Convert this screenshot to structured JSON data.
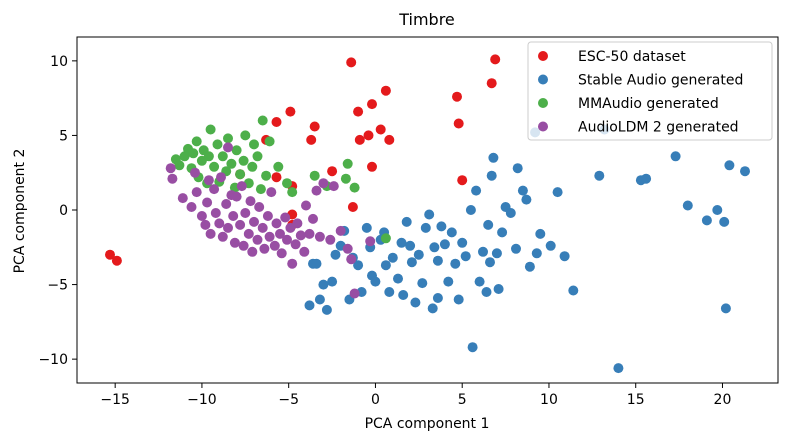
{
  "chart_data": {
    "type": "scatter",
    "title": "Timbre",
    "xlabel": "PCA component 1",
    "ylabel": "PCA component 2",
    "xlim": [
      -17.2,
      23.2
    ],
    "ylim": [
      -11.6,
      11.6
    ],
    "xticks": [
      -15,
      -10,
      -5,
      0,
      5,
      10,
      15,
      20
    ],
    "yticks": [
      -10,
      -5,
      0,
      5,
      10
    ],
    "grid": false,
    "legend_position": "top-right",
    "series": [
      {
        "name": "ESC-50 dataset",
        "color": "#e41a1c",
        "points": [
          [
            -15.3,
            -3.0
          ],
          [
            -14.9,
            -3.4
          ],
          [
            -7.8,
            2.4
          ],
          [
            -6.3,
            4.7
          ],
          [
            -5.7,
            5.9
          ],
          [
            -5.7,
            2.2
          ],
          [
            -4.9,
            6.6
          ],
          [
            -4.8,
            1.6
          ],
          [
            -4.8,
            -0.3
          ],
          [
            -4.8,
            -1.0
          ],
          [
            -3.7,
            4.7
          ],
          [
            -3.5,
            5.6
          ],
          [
            -2.5,
            2.6
          ],
          [
            -1.4,
            9.9
          ],
          [
            -1.3,
            0.2
          ],
          [
            -1.0,
            6.6
          ],
          [
            -0.9,
            4.7
          ],
          [
            -0.4,
            5.0
          ],
          [
            -0.2,
            2.9
          ],
          [
            -0.2,
            7.1
          ],
          [
            0.3,
            5.4
          ],
          [
            0.6,
            8.0
          ],
          [
            0.8,
            4.7
          ],
          [
            4.7,
            7.6
          ],
          [
            4.8,
            5.8
          ],
          [
            5.0,
            2.0
          ],
          [
            6.7,
            8.5
          ],
          [
            6.9,
            10.1
          ]
        ]
      },
      {
        "name": "Stable Audio generated",
        "color": "#377eb8",
        "points": [
          [
            -3.8,
            -6.4
          ],
          [
            -3.6,
            -3.6
          ],
          [
            -3.4,
            -3.6
          ],
          [
            -3.2,
            -6.0
          ],
          [
            -3.0,
            -5.0
          ],
          [
            -2.8,
            -6.7
          ],
          [
            -2.5,
            -4.8
          ],
          [
            -2.3,
            -3.0
          ],
          [
            -2.0,
            -2.4
          ],
          [
            -1.8,
            -1.4
          ],
          [
            -1.5,
            -6.0
          ],
          [
            -1.3,
            -3.2
          ],
          [
            -1.0,
            -3.7
          ],
          [
            -0.8,
            -5.5
          ],
          [
            -0.5,
            -1.2
          ],
          [
            -0.3,
            -2.5
          ],
          [
            -0.2,
            -4.4
          ],
          [
            0.0,
            -4.8
          ],
          [
            0.3,
            -2.0
          ],
          [
            0.5,
            -1.5
          ],
          [
            0.6,
            -3.7
          ],
          [
            0.8,
            -5.5
          ],
          [
            1.0,
            -3.2
          ],
          [
            1.3,
            -4.6
          ],
          [
            1.5,
            -2.2
          ],
          [
            1.6,
            -5.7
          ],
          [
            1.8,
            -0.8
          ],
          [
            2.0,
            -2.4
          ],
          [
            2.1,
            -3.5
          ],
          [
            2.3,
            -6.2
          ],
          [
            2.5,
            -3.0
          ],
          [
            2.7,
            -4.9
          ],
          [
            2.9,
            -1.2
          ],
          [
            3.1,
            -0.3
          ],
          [
            3.3,
            -6.6
          ],
          [
            3.4,
            -2.5
          ],
          [
            3.6,
            -5.9
          ],
          [
            3.6,
            -3.4
          ],
          [
            3.8,
            -1.1
          ],
          [
            4.0,
            -2.3
          ],
          [
            4.2,
            -4.8
          ],
          [
            4.4,
            -1.5
          ],
          [
            4.6,
            -3.6
          ],
          [
            4.8,
            -6.0
          ],
          [
            5.0,
            -2.2
          ],
          [
            5.2,
            -3.1
          ],
          [
            5.5,
            0.0
          ],
          [
            5.6,
            -9.2
          ],
          [
            5.8,
            1.3
          ],
          [
            6.0,
            -4.8
          ],
          [
            6.2,
            -2.8
          ],
          [
            6.4,
            -5.5
          ],
          [
            6.5,
            -1.0
          ],
          [
            6.6,
            -3.5
          ],
          [
            6.7,
            2.3
          ],
          [
            6.8,
            3.5
          ],
          [
            7.0,
            -2.9
          ],
          [
            7.1,
            -5.3
          ],
          [
            7.3,
            -1.5
          ],
          [
            7.5,
            0.2
          ],
          [
            7.8,
            -0.2
          ],
          [
            8.1,
            -2.6
          ],
          [
            8.2,
            2.8
          ],
          [
            8.5,
            1.3
          ],
          [
            8.7,
            0.7
          ],
          [
            8.9,
            -3.8
          ],
          [
            9.2,
            5.2
          ],
          [
            9.3,
            -2.9
          ],
          [
            9.5,
            -1.6
          ],
          [
            10.1,
            -2.4
          ],
          [
            10.5,
            1.2
          ],
          [
            10.9,
            -3.1
          ],
          [
            11.4,
            -5.4
          ],
          [
            12.9,
            2.3
          ],
          [
            13.2,
            5.4
          ],
          [
            14.0,
            -10.6
          ],
          [
            15.3,
            2.0
          ],
          [
            15.6,
            2.1
          ],
          [
            17.3,
            3.6
          ],
          [
            18.0,
            0.3
          ],
          [
            19.1,
            -0.7
          ],
          [
            19.7,
            0.0
          ],
          [
            20.1,
            -0.8
          ],
          [
            20.2,
            -6.6
          ],
          [
            20.4,
            3.0
          ],
          [
            21.3,
            2.6
          ]
        ]
      },
      {
        "name": "MMAudio generated",
        "color": "#4daf4a",
        "points": [
          [
            -11.5,
            3.4
          ],
          [
            -11.3,
            3.0
          ],
          [
            -11.0,
            3.6
          ],
          [
            -10.8,
            4.1
          ],
          [
            -10.6,
            2.8
          ],
          [
            -10.5,
            3.8
          ],
          [
            -10.3,
            4.6
          ],
          [
            -10.2,
            2.2
          ],
          [
            -10.0,
            3.3
          ],
          [
            -9.9,
            4.0
          ],
          [
            -9.7,
            1.8
          ],
          [
            -9.6,
            3.6
          ],
          [
            -9.5,
            5.4
          ],
          [
            -9.3,
            2.9
          ],
          [
            -9.1,
            4.4
          ],
          [
            -9.0,
            1.9
          ],
          [
            -8.8,
            3.6
          ],
          [
            -8.6,
            2.6
          ],
          [
            -8.5,
            4.8
          ],
          [
            -8.3,
            3.1
          ],
          [
            -8.1,
            1.5
          ],
          [
            -8.0,
            4.0
          ],
          [
            -7.8,
            2.4
          ],
          [
            -7.6,
            3.3
          ],
          [
            -7.5,
            5.0
          ],
          [
            -7.3,
            1.8
          ],
          [
            -7.1,
            2.9
          ],
          [
            -7.0,
            4.4
          ],
          [
            -6.8,
            3.6
          ],
          [
            -6.6,
            1.4
          ],
          [
            -6.5,
            6.0
          ],
          [
            -6.3,
            2.3
          ],
          [
            -6.1,
            4.6
          ],
          [
            -5.6,
            2.9
          ],
          [
            -5.1,
            1.8
          ],
          [
            -4.8,
            1.2
          ],
          [
            -3.5,
            2.3
          ],
          [
            -2.8,
            1.6
          ],
          [
            -1.6,
            3.1
          ],
          [
            -1.7,
            2.1
          ],
          [
            -1.2,
            1.5
          ],
          [
            0.6,
            -1.9
          ]
        ]
      },
      {
        "name": "AudioLDM 2 generated",
        "color": "#984ea3",
        "points": [
          [
            -11.8,
            2.8
          ],
          [
            -11.7,
            2.1
          ],
          [
            -11.1,
            0.8
          ],
          [
            -10.6,
            0.2
          ],
          [
            -10.3,
            1.2
          ],
          [
            -10.0,
            -0.4
          ],
          [
            -9.8,
            -1.0
          ],
          [
            -9.7,
            0.5
          ],
          [
            -9.5,
            -1.6
          ],
          [
            -9.3,
            1.4
          ],
          [
            -9.2,
            -0.2
          ],
          [
            -9.0,
            -0.9
          ],
          [
            -8.9,
            2.2
          ],
          [
            -8.8,
            -1.8
          ],
          [
            -8.6,
            0.4
          ],
          [
            -8.5,
            -1.2
          ],
          [
            -8.3,
            1.0
          ],
          [
            -8.2,
            -0.4
          ],
          [
            -8.1,
            -2.2
          ],
          [
            -8.0,
            0.9
          ],
          [
            -7.8,
            -1.0
          ],
          [
            -7.7,
            1.6
          ],
          [
            -7.6,
            -2.4
          ],
          [
            -7.5,
            -0.2
          ],
          [
            -7.3,
            -1.6
          ],
          [
            -7.2,
            0.6
          ],
          [
            -7.1,
            -2.8
          ],
          [
            -7.0,
            -0.8
          ],
          [
            -6.8,
            -2.0
          ],
          [
            -6.7,
            0.2
          ],
          [
            -6.5,
            -1.2
          ],
          [
            -6.4,
            -2.6
          ],
          [
            -6.2,
            -0.4
          ],
          [
            -6.1,
            -1.8
          ],
          [
            -6.0,
            1.2
          ],
          [
            -5.8,
            -2.4
          ],
          [
            -5.7,
            -0.9
          ],
          [
            -5.5,
            -1.6
          ],
          [
            -5.4,
            -2.9
          ],
          [
            -5.2,
            -0.5
          ],
          [
            -5.1,
            -2.0
          ],
          [
            -4.9,
            -1.2
          ],
          [
            -4.8,
            -3.6
          ],
          [
            -4.6,
            -2.3
          ],
          [
            -4.5,
            -0.9
          ],
          [
            -4.3,
            -1.7
          ],
          [
            -4.1,
            -2.8
          ],
          [
            -4.0,
            0.3
          ],
          [
            -3.8,
            -1.6
          ],
          [
            -3.6,
            -0.6
          ],
          [
            -3.4,
            1.3
          ],
          [
            -3.2,
            -1.8
          ],
          [
            -3.0,
            1.8
          ],
          [
            -2.6,
            -2.0
          ],
          [
            -2.4,
            1.6
          ],
          [
            -2.0,
            -1.4
          ],
          [
            -1.6,
            -2.6
          ],
          [
            -1.4,
            -3.3
          ],
          [
            -1.2,
            -5.6
          ],
          [
            -0.3,
            -2.1
          ],
          [
            -8.5,
            4.2
          ],
          [
            -10.4,
            2.5
          ],
          [
            -9.6,
            2.0
          ]
        ]
      }
    ]
  }
}
